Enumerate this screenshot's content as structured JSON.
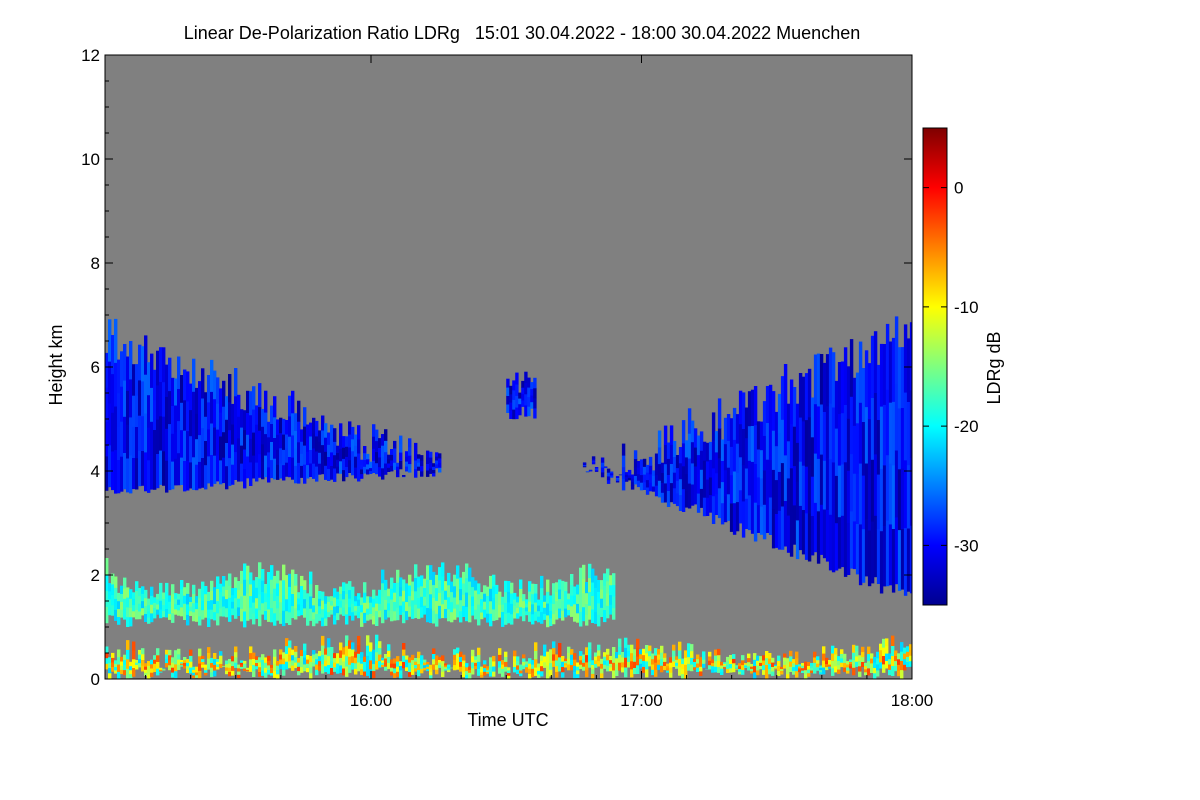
{
  "chart_data": {
    "type": "heatmap",
    "title": "Linear De-Polarization Ratio LDRg   15:01 30.04.2022 - 18:00 30.04.2022 Muenchen",
    "xlabel": "Time UTC",
    "ylabel": "Height km",
    "colorbar_label": "LDRg dB",
    "x_range_hours": [
      15.0167,
      18.0
    ],
    "y_range_km": [
      0,
      12
    ],
    "x_ticks": [
      {
        "value": 16.0,
        "label": "16:00"
      },
      {
        "value": 17.0,
        "label": "17:00"
      },
      {
        "value": 18.0,
        "label": "18:00"
      }
    ],
    "y_ticks": [
      {
        "value": 0,
        "label": "0"
      },
      {
        "value": 2,
        "label": "2"
      },
      {
        "value": 4,
        "label": "4"
      },
      {
        "value": 6,
        "label": "6"
      },
      {
        "value": 8,
        "label": "8"
      },
      {
        "value": 10,
        "label": "10"
      },
      {
        "value": 12,
        "label": "12"
      }
    ],
    "colorbar_range_db": [
      -35,
      5
    ],
    "colorbar_ticks": [
      {
        "value": 0,
        "label": "0"
      },
      {
        "value": -10,
        "label": "-10"
      },
      {
        "value": -20,
        "label": "-20"
      },
      {
        "value": -30,
        "label": "-30"
      }
    ],
    "colormap": "jet",
    "no_data_color": "#808080",
    "regions": [
      {
        "name": "cirrus-west",
        "t_start": 15.0167,
        "t_end": 16.25,
        "z_bottom": 3.5,
        "z_top": 7.3,
        "ldr_db": -30
      },
      {
        "name": "cirrus-mid",
        "t_start": 16.5,
        "t_end": 16.6,
        "z_bottom": 5.0,
        "z_top": 6.2,
        "ldr_db": -30
      },
      {
        "name": "cirrus-east",
        "t_start": 16.75,
        "t_end": 18.0,
        "z_bottom": 1.2,
        "z_top": 7.5,
        "ldr_db": -30
      },
      {
        "name": "boundary-layer",
        "t_start": 15.0167,
        "t_end": 18.0,
        "z_bottom": 0,
        "z_top": 0.9,
        "ldr_db": -12
      },
      {
        "name": "aerosol-layer",
        "t_start": 15.0167,
        "t_end": 16.9,
        "z_bottom": 1.0,
        "z_top": 2.4,
        "ldr_db": -18
      }
    ]
  },
  "colors": {
    "no_data": "#808080",
    "jet": [
      "#00008f",
      "#0000ff",
      "#007fff",
      "#00ffff",
      "#7fff7f",
      "#ffff00",
      "#ff7f00",
      "#ff0000",
      "#7f0000"
    ]
  }
}
